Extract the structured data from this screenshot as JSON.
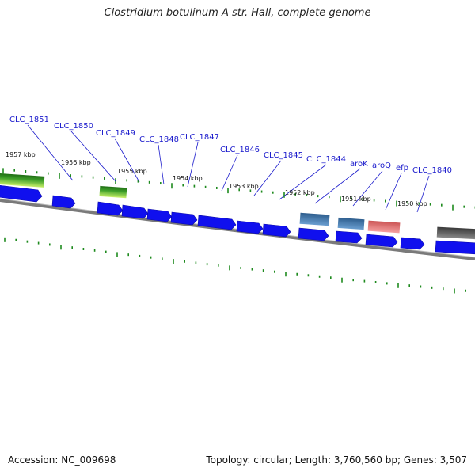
{
  "title": "Clostridium botulinum A str. Hall, complete genome",
  "footer": {
    "accession_label": "Accession:",
    "accession_value": "NC_009698",
    "topology_label": "Topology:",
    "topology_value": "circular",
    "length_label": "Length:",
    "length_value": "3,760,560 bp",
    "genes_label": "Genes:",
    "genes_value": "3,507"
  },
  "colors": {
    "cds_forward": "#1010ee",
    "label_text": "#1a1acc",
    "leader_line": "#1a1acc",
    "tick_mark": "#1e8a1e",
    "backbone": "#888888",
    "trna_top": "#2e8b1e",
    "trna_bottom": "#b6e85a",
    "feature_aroK": "#4a7fb0",
    "feature_aroQ": "#4a7fb0",
    "feature_efp": "#e88080",
    "feature_gray": "#5a5a5a"
  },
  "gene_labels": [
    "CLC_1851",
    "CLC_1850",
    "CLC_1849",
    "CLC_1848",
    "CLC_1847",
    "CLC_1846",
    "CLC_1845",
    "CLC_1844",
    "aroK",
    "aroQ",
    "efp",
    "CLC_1840"
  ],
  "kbp_labels": [
    "1957 kbp",
    "1956 kbp",
    "1955 kbp",
    "1954 kbp",
    "1953 kbp",
    "1952 kbp",
    "1951 kbp",
    "1950 kbp"
  ]
}
